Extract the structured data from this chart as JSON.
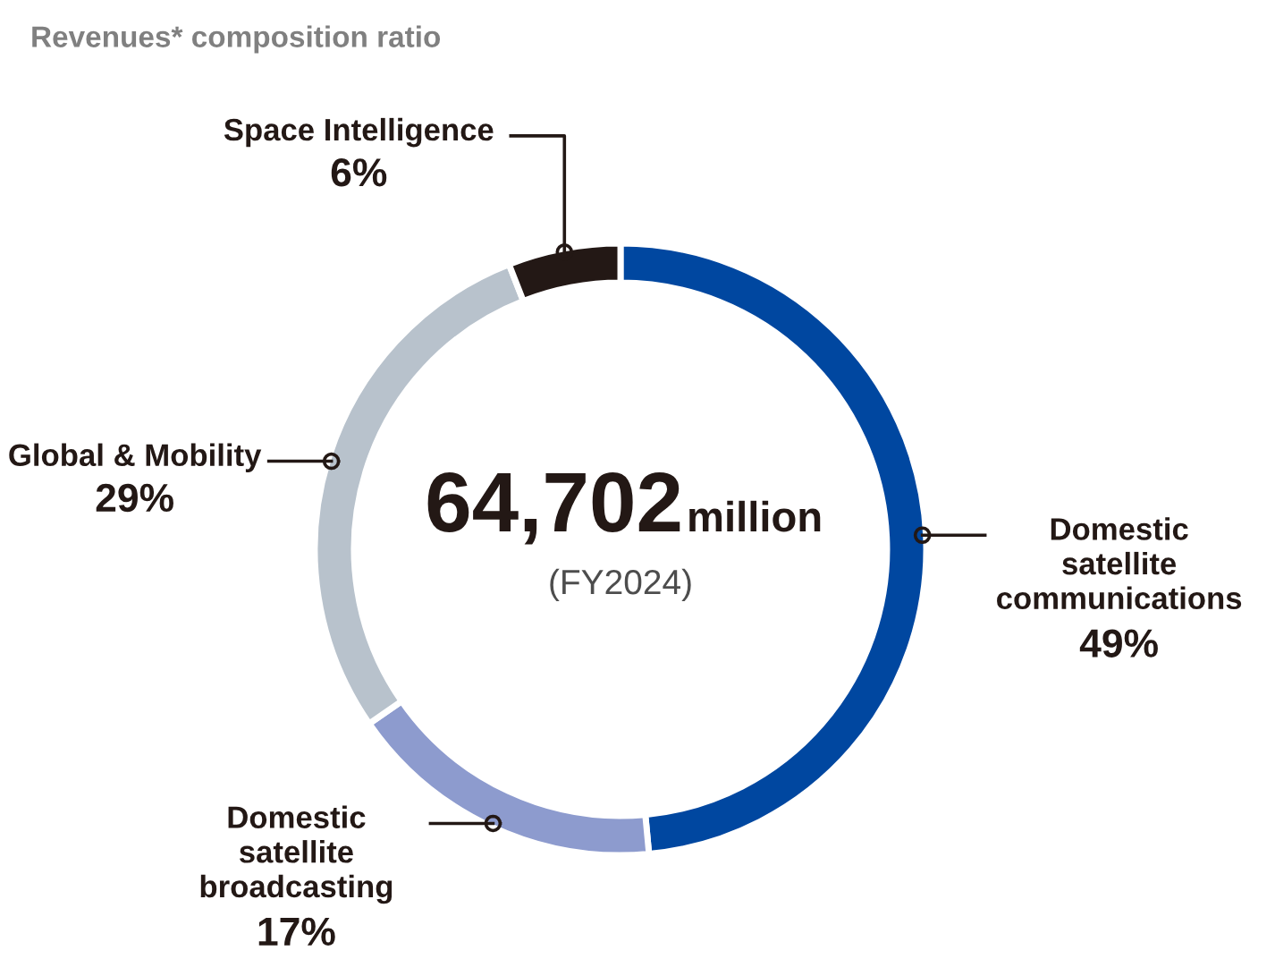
{
  "chart_data": {
    "type": "donut",
    "title": "Revenues* composition ratio",
    "categories": [
      "Domestic\nsatellite\ncommunications",
      "Domestic\nsatellite\nbroadcasting",
      "Global & Mobility",
      "Space Intelligence"
    ],
    "values": [
      49,
      17,
      29,
      6
    ],
    "value_labels": [
      "49%",
      "17%",
      "29%",
      "6%"
    ],
    "colors": [
      "#0047a0",
      "#8d9bce",
      "#b8c2cc",
      "#231815"
    ],
    "annotations": [
      "64,702",
      "million",
      "(FY2024)"
    ],
    "legend": false
  }
}
